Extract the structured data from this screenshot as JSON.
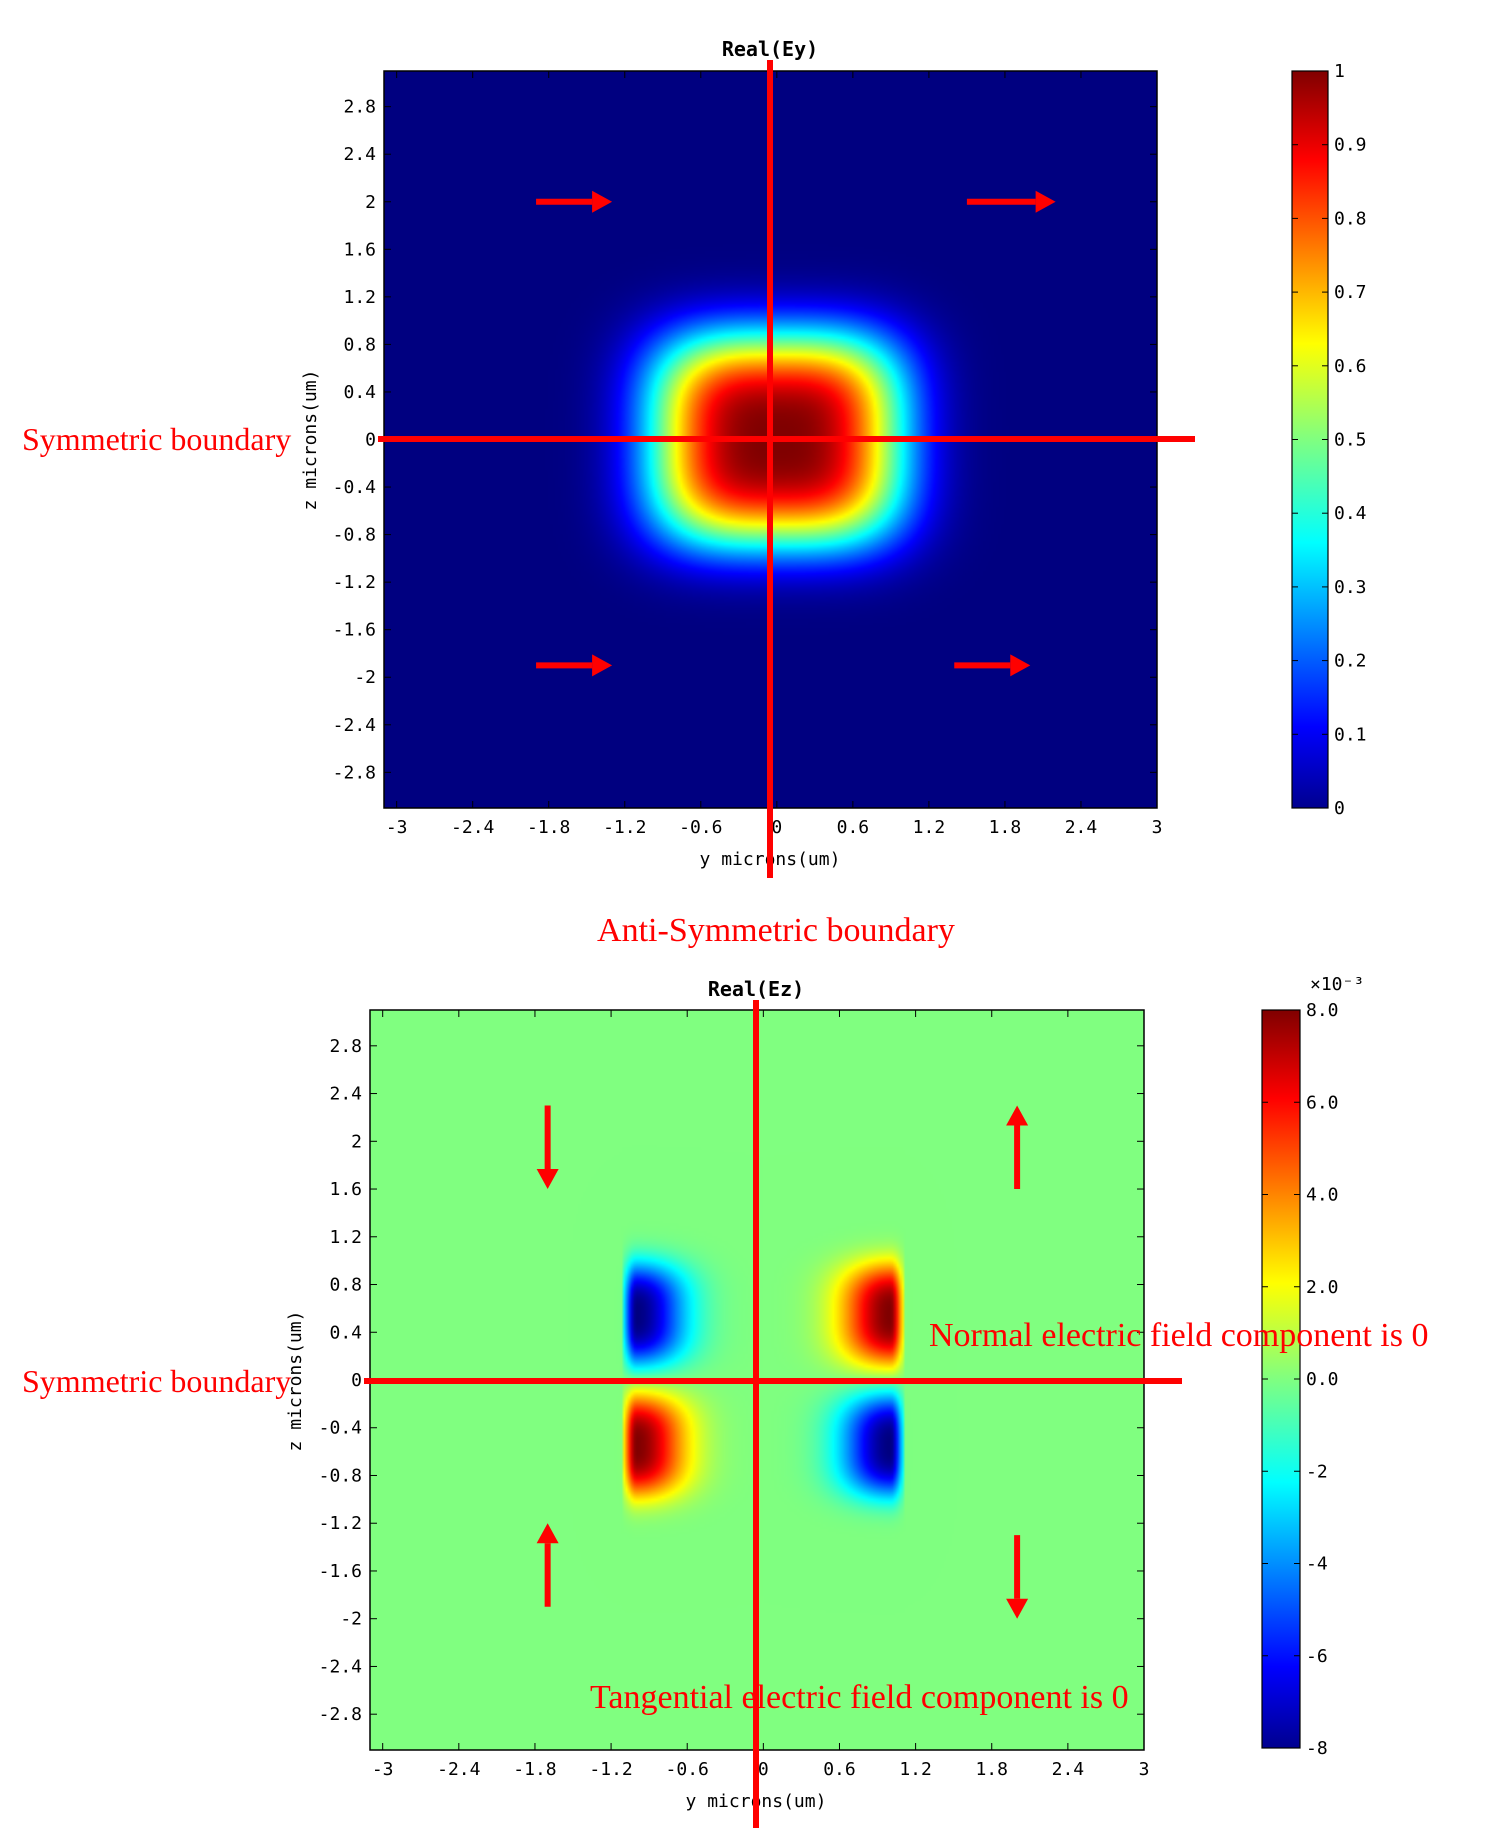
{
  "chart_data": [
    {
      "type": "heatmap",
      "title": "Real(Ey)",
      "xlabel": "y microns(um)",
      "ylabel": "z microns(um)",
      "xlim": [
        -3.1,
        3.0
      ],
      "ylim": [
        -3.1,
        3.1
      ],
      "xticks": [
        "-3",
        "-2.4",
        "-1.8",
        "-1.2",
        "-0.6",
        "0",
        "0.6",
        "1.2",
        "1.8",
        "2.4",
        "3"
      ],
      "xtick_values": [
        -3,
        -2.4,
        -1.8,
        -1.2,
        -0.6,
        0,
        0.6,
        1.2,
        1.8,
        2.4,
        3
      ],
      "yticks": [
        "2.8",
        "2.4",
        "2",
        "1.6",
        "1.2",
        "0.8",
        "0.4",
        "0",
        "-0.4",
        "-0.8",
        "-1.2",
        "-1.6",
        "-2",
        "-2.4",
        "-2.8"
      ],
      "ytick_values": [
        2.8,
        2.4,
        2,
        1.6,
        1.2,
        0.8,
        0.4,
        0,
        -0.4,
        -0.8,
        -1.2,
        -1.6,
        -2,
        -2.4,
        -2.8
      ],
      "colorbar": {
        "range": [
          0,
          1
        ],
        "ticks": [
          "1",
          "0.9",
          "0.8",
          "0.7",
          "0.6",
          "0.5",
          "0.4",
          "0.3",
          "0.2",
          "0.1",
          "0"
        ],
        "tick_values": [
          1,
          0.9,
          0.8,
          0.7,
          0.6,
          0.5,
          0.4,
          0.3,
          0.2,
          0.1,
          0
        ],
        "exponent_label": ""
      },
      "field": {
        "kind": "gaussian-mode",
        "center": [
          0,
          0
        ],
        "peak": 1.0,
        "half_width_y": 1.0,
        "half_width_z": 0.9
      },
      "boundaries": {
        "horizontal_label": "Symmetric boundary",
        "vertical_label": "Anti-Symmetric boundary",
        "horizontal_z": 0,
        "vertical_y": 0
      },
      "arrows": [
        {
          "direction": "right",
          "y": [
            -1.9,
            -1.3
          ],
          "z": 2.0
        },
        {
          "direction": "right",
          "y": [
            1.5,
            2.2
          ],
          "z": 2.0
        },
        {
          "direction": "right",
          "y": [
            -1.9,
            -1.3
          ],
          "z": -1.9
        },
        {
          "direction": "right",
          "y": [
            1.4,
            2.0
          ],
          "z": -1.9
        }
      ],
      "grid": false
    },
    {
      "type": "heatmap",
      "title": "Real(Ez)",
      "xlabel": "y microns(um)",
      "ylabel": "z microns(um)",
      "xlim": [
        -3.1,
        3.0
      ],
      "ylim": [
        -3.1,
        3.1
      ],
      "xticks": [
        "-3",
        "-2.4",
        "-1.8",
        "-1.2",
        "-0.6",
        "0",
        "0.6",
        "1.2",
        "1.8",
        "2.4",
        "3"
      ],
      "xtick_values": [
        -3,
        -2.4,
        -1.8,
        -1.2,
        -0.6,
        0,
        0.6,
        1.2,
        1.8,
        2.4,
        3
      ],
      "yticks": [
        "2.8",
        "2.4",
        "2",
        "1.6",
        "1.2",
        "0.8",
        "0.4",
        "0",
        "-0.4",
        "-0.8",
        "-1.2",
        "-1.6",
        "-2",
        "-2.4",
        "-2.8"
      ],
      "ytick_values": [
        2.8,
        2.4,
        2,
        1.6,
        1.2,
        0.8,
        0.4,
        0,
        -0.4,
        -0.8,
        -1.2,
        -1.6,
        -2,
        -2.4,
        -2.8
      ],
      "colorbar": {
        "range": [
          -8,
          8
        ],
        "ticks": [
          "8.0",
          "6.0",
          "4.0",
          "2.0",
          "0.0",
          "-2",
          "-4",
          "-6",
          "-8"
        ],
        "tick_values": [
          8,
          6,
          4,
          2,
          0,
          -2,
          -4,
          -6,
          -8
        ],
        "exponent_label": "×10⁻³"
      },
      "field": {
        "kind": "four-lobes",
        "lobes": [
          {
            "sign": -1,
            "y": -1.0,
            "z": 0.55
          },
          {
            "sign": 1,
            "y": 1.0,
            "z": 0.55
          },
          {
            "sign": 1,
            "y": -1.0,
            "z": -0.55
          },
          {
            "sign": -1,
            "y": 1.0,
            "z": -0.55
          }
        ],
        "peak": 8.0
      },
      "boundaries": {
        "horizontal_label": "Symmetric boundary",
        "horizontal_z": 0,
        "vertical_y": 0
      },
      "annotations": [
        "Normal electric field component is 0",
        "Tangential electric field component is 0"
      ],
      "arrows": [
        {
          "direction": "down",
          "y": -1.7,
          "z": [
            2.3,
            1.6
          ]
        },
        {
          "direction": "up",
          "y": 2.0,
          "z": [
            1.6,
            2.3
          ]
        },
        {
          "direction": "up",
          "y": -1.7,
          "z": [
            -1.9,
            -1.2
          ]
        },
        {
          "direction": "down",
          "y": 2.0,
          "z": [
            -1.3,
            -2.0
          ]
        }
      ],
      "grid": false
    }
  ]
}
